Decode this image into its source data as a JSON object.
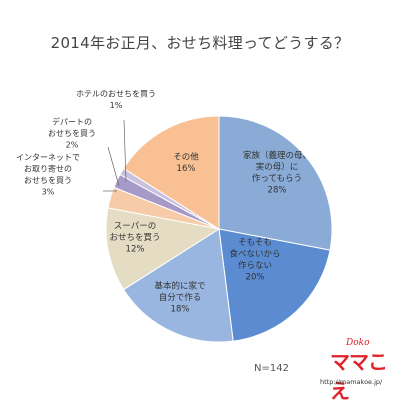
{
  "chart_data": {
    "type": "pie",
    "title": "2014年お正月、おせち料理ってどうする？",
    "n_label": "N=142",
    "slices": [
      {
        "label_lines": [
          "家族（義理の母、",
          "実の母）に",
          "作ってもらう"
        ],
        "value": 28,
        "value_label": "28%",
        "color": "#8aabd6"
      },
      {
        "label_lines": [
          "そもそも",
          "食べないから",
          "作らない"
        ],
        "value": 20,
        "value_label": "20%",
        "color": "#5b8bd1"
      },
      {
        "label_lines": [
          "基本的に家で",
          "自分で作る"
        ],
        "value": 18,
        "value_label": "18%",
        "color": "#98b6e0"
      },
      {
        "label_lines": [
          "スーパーの",
          "おせちを買う"
        ],
        "value": 12,
        "value_label": "12%",
        "color": "#e4ddc4"
      },
      {
        "label_lines": [
          "インターネットで",
          "お取り寄せの",
          "おせちを買う"
        ],
        "value": 3,
        "value_label": "3%",
        "color": "#f7cba8"
      },
      {
        "label_lines": [
          "デパートの",
          "おせちを買う"
        ],
        "value": 2,
        "value_label": "2%",
        "color": "#a69ac8"
      },
      {
        "label_lines": [
          "ホテルのおせちを買う"
        ],
        "value": 1,
        "value_label": "1%",
        "color": "#c9c0dd"
      },
      {
        "label_lines": [
          "その他"
        ],
        "value": 16,
        "value_label": "16%",
        "color": "#f8c093"
      }
    ]
  },
  "logo": {
    "text": "ママこえ",
    "script": "Doko",
    "url": "http://mamakoe.jp/"
  }
}
